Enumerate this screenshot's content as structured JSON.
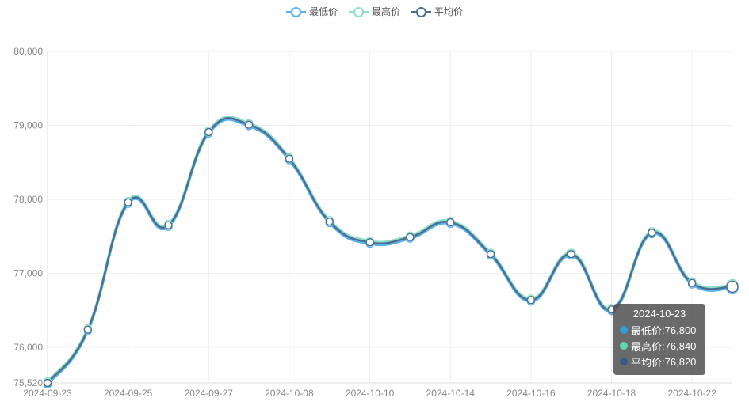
{
  "chart_data": {
    "type": "line",
    "title": "",
    "xlabel": "",
    "ylabel": "",
    "x": [
      "2024-09-23",
      "2024-09-24",
      "2024-09-25",
      "2024-09-26",
      "2024-09-27",
      "2024-09-28",
      "2024-10-08",
      "2024-10-09",
      "2024-10-10",
      "2024-10-11",
      "2024-10-14",
      "2024-10-15",
      "2024-10-16",
      "2024-10-17",
      "2024-10-18",
      "2024-10-21",
      "2024-10-22",
      "2024-10-23"
    ],
    "x_tick_labels": [
      "2024-09-23",
      "2024-09-25",
      "2024-09-27",
      "2024-10-08",
      "2024-10-10",
      "2024-10-14",
      "2024-10-16",
      "2024-10-18",
      "2024-10-22"
    ],
    "y_tick_labels": [
      "80,000",
      "79,000",
      "78,000",
      "77,000",
      "76,000",
      "75,520"
    ],
    "ylim": [
      75520,
      80000
    ],
    "smooth": true,
    "grid": true,
    "legend_position": "top-center",
    "series": [
      {
        "name": "最低价",
        "color": "#5ab1ef",
        "values": [
          75500,
          76220,
          77940,
          77630,
          78890,
          78990,
          78530,
          77680,
          77400,
          77470,
          77670,
          77240,
          76620,
          77240,
          76490,
          77530,
          76850,
          76800
        ]
      },
      {
        "name": "最高价",
        "color": "#8fe0c8",
        "values": [
          75540,
          76260,
          77980,
          77670,
          78930,
          79030,
          78570,
          77720,
          77440,
          77510,
          77710,
          77280,
          76660,
          77280,
          76530,
          77570,
          76890,
          76840
        ]
      },
      {
        "name": "平均价",
        "color": "#4a6f8f",
        "values": [
          75520,
          76240,
          77960,
          77650,
          78910,
          79010,
          78550,
          77700,
          77420,
          77490,
          77690,
          77260,
          76640,
          77260,
          76510,
          77550,
          76870,
          76820
        ]
      }
    ],
    "tooltip": {
      "title": "2024-10-23",
      "rows": [
        {
          "label": "最低价",
          "value": "76,800",
          "color": "#2f9fd8"
        },
        {
          "label": "最高价",
          "value": "76,840",
          "color": "#5dd9ae"
        },
        {
          "label": "平均价",
          "value": "76,820",
          "color": "#3a5a8a"
        }
      ]
    }
  }
}
